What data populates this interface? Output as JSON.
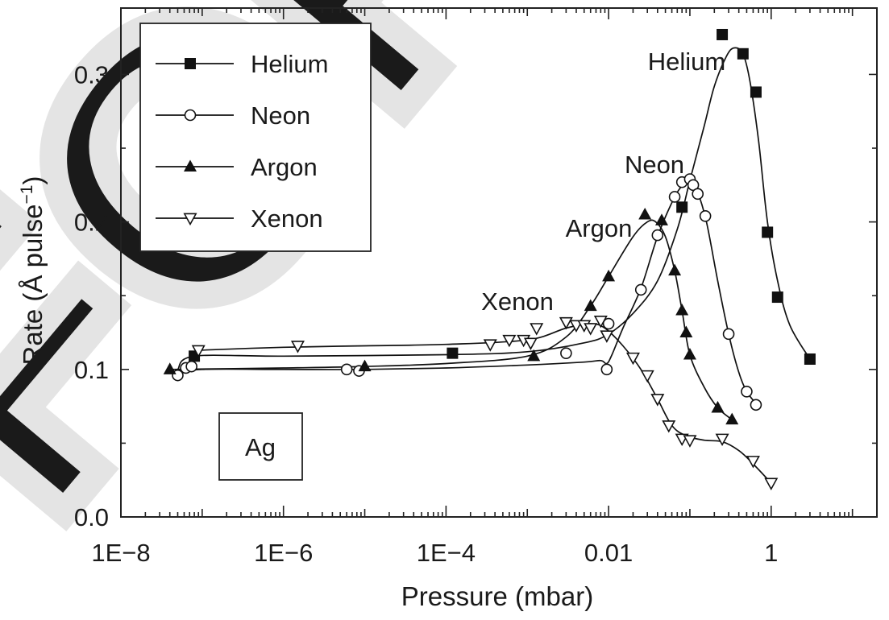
{
  "chart_data": {
    "type": "line",
    "xlabel": "Pressure (mbar)",
    "ylabel_main": "Rate (Å pulse",
    "ylabel_exp": "−1",
    "ylabel_close": ")",
    "x_scale": "log",
    "xlim": [
      1e-08,
      20
    ],
    "ylim": [
      0.0,
      0.345
    ],
    "x_ticks": [
      1e-08,
      1e-06,
      0.0001,
      0.01,
      1
    ],
    "x_tick_labels": [
      "1E−8",
      "1E−6",
      "1E−4",
      "0.01",
      "1"
    ],
    "y_ticks": [
      0.0,
      0.1,
      0.2,
      0.3
    ],
    "y_tick_labels": [
      "0.0",
      "0.1",
      "0.2",
      "0.3"
    ],
    "grid": false,
    "legend_position": "top-left",
    "sample_label": "Ag",
    "watermark": "FOR",
    "series": [
      {
        "name": "Helium",
        "marker": "filled-square",
        "line_label": "Helium",
        "points": [
          [
            8e-08,
            0.109
          ],
          [
            0.00012,
            0.111
          ],
          [
            0.08,
            0.21
          ],
          [
            0.25,
            0.327
          ],
          [
            0.45,
            0.314
          ],
          [
            0.65,
            0.288
          ],
          [
            0.9,
            0.193
          ],
          [
            1.2,
            0.149
          ],
          [
            3.0,
            0.107
          ]
        ],
        "curve": [
          [
            5e-08,
            0.1
          ],
          [
            8e-08,
            0.109
          ],
          [
            1e-06,
            0.109
          ],
          [
            0.0001,
            0.11
          ],
          [
            0.001,
            0.112
          ],
          [
            0.005,
            0.118
          ],
          [
            0.01,
            0.124
          ],
          [
            0.02,
            0.138
          ],
          [
            0.04,
            0.16
          ],
          [
            0.07,
            0.195
          ],
          [
            0.1,
            0.228
          ],
          [
            0.15,
            0.265
          ],
          [
            0.2,
            0.292
          ],
          [
            0.28,
            0.312
          ],
          [
            0.35,
            0.318
          ],
          [
            0.45,
            0.314
          ],
          [
            0.55,
            0.295
          ],
          [
            0.7,
            0.255
          ],
          [
            0.9,
            0.2
          ],
          [
            1.2,
            0.16
          ],
          [
            1.7,
            0.13
          ],
          [
            3.0,
            0.107
          ]
        ]
      },
      {
        "name": "Neon",
        "marker": "open-circle",
        "line_label": "Neon",
        "points": [
          [
            5e-08,
            0.096
          ],
          [
            6.3e-08,
            0.101
          ],
          [
            7.4e-08,
            0.102
          ],
          [
            6e-06,
            0.1
          ],
          [
            8.5e-06,
            0.099
          ],
          [
            0.003,
            0.111
          ],
          [
            0.0095,
            0.1
          ],
          [
            0.01,
            0.131
          ],
          [
            0.025,
            0.154
          ],
          [
            0.04,
            0.191
          ],
          [
            0.065,
            0.217
          ],
          [
            0.08,
            0.227
          ],
          [
            0.1,
            0.229
          ],
          [
            0.11,
            0.225
          ],
          [
            0.125,
            0.219
          ],
          [
            0.155,
            0.204
          ],
          [
            0.3,
            0.124
          ],
          [
            0.5,
            0.085
          ],
          [
            0.65,
            0.076
          ]
        ],
        "curve": [
          [
            5e-08,
            0.097
          ],
          [
            1e-07,
            0.1
          ],
          [
            1e-06,
            0.1
          ],
          [
            1e-05,
            0.1
          ],
          [
            0.0001,
            0.101
          ],
          [
            0.001,
            0.103
          ],
          [
            0.005,
            0.105
          ],
          [
            0.008,
            0.106
          ],
          [
            0.0095,
            0.104
          ],
          [
            0.011,
            0.11
          ],
          [
            0.015,
            0.128
          ],
          [
            0.025,
            0.155
          ],
          [
            0.04,
            0.19
          ],
          [
            0.065,
            0.217
          ],
          [
            0.085,
            0.226
          ],
          [
            0.1,
            0.229
          ],
          [
            0.125,
            0.22
          ],
          [
            0.16,
            0.2
          ],
          [
            0.22,
            0.16
          ],
          [
            0.3,
            0.124
          ],
          [
            0.4,
            0.098
          ],
          [
            0.5,
            0.085
          ],
          [
            0.65,
            0.077
          ]
        ]
      },
      {
        "name": "Argon",
        "marker": "filled-triangle",
        "line_label": "Argon",
        "points": [
          [
            4e-08,
            0.1
          ],
          [
            1e-05,
            0.102
          ],
          [
            0.0012,
            0.109
          ],
          [
            0.006,
            0.143
          ],
          [
            0.01,
            0.163
          ],
          [
            0.028,
            0.205
          ],
          [
            0.045,
            0.201
          ],
          [
            0.065,
            0.167
          ],
          [
            0.08,
            0.14
          ],
          [
            0.09,
            0.125
          ],
          [
            0.1,
            0.11
          ],
          [
            0.22,
            0.074
          ],
          [
            0.33,
            0.066
          ]
        ],
        "curve": [
          [
            4e-08,
            0.1
          ],
          [
            1e-06,
            0.101
          ],
          [
            1e-05,
            0.102
          ],
          [
            0.0001,
            0.104
          ],
          [
            0.001,
            0.109
          ],
          [
            0.003,
            0.122
          ],
          [
            0.006,
            0.143
          ],
          [
            0.01,
            0.163
          ],
          [
            0.02,
            0.19
          ],
          [
            0.03,
            0.2
          ],
          [
            0.038,
            0.2
          ],
          [
            0.05,
            0.19
          ],
          [
            0.065,
            0.167
          ],
          [
            0.08,
            0.14
          ],
          [
            0.1,
            0.11
          ],
          [
            0.15,
            0.088
          ],
          [
            0.22,
            0.074
          ],
          [
            0.33,
            0.066
          ]
        ]
      },
      {
        "name": "Xenon",
        "marker": "open-triangle-down",
        "line_label": "Xenon",
        "points": [
          [
            9e-08,
            0.113
          ],
          [
            1.5e-06,
            0.116
          ],
          [
            0.00035,
            0.117
          ],
          [
            0.0006,
            0.12
          ],
          [
            0.0009,
            0.12
          ],
          [
            0.0011,
            0.118
          ],
          [
            0.0013,
            0.128
          ],
          [
            0.003,
            0.132
          ],
          [
            0.004,
            0.13
          ],
          [
            0.005,
            0.13
          ],
          [
            0.006,
            0.128
          ],
          [
            0.008,
            0.133
          ],
          [
            0.0095,
            0.123
          ],
          [
            0.02,
            0.108
          ],
          [
            0.03,
            0.096
          ],
          [
            0.04,
            0.08
          ],
          [
            0.055,
            0.062
          ],
          [
            0.08,
            0.053
          ],
          [
            0.1,
            0.052
          ],
          [
            0.25,
            0.053
          ],
          [
            0.6,
            0.038
          ],
          [
            1.0,
            0.023
          ]
        ],
        "curve": [
          [
            9e-08,
            0.113
          ],
          [
            1e-06,
            0.115
          ],
          [
            1e-05,
            0.116
          ],
          [
            0.0001,
            0.117
          ],
          [
            0.001,
            0.12
          ],
          [
            0.003,
            0.128
          ],
          [
            0.006,
            0.131
          ],
          [
            0.009,
            0.128
          ],
          [
            0.015,
            0.116
          ],
          [
            0.025,
            0.1
          ],
          [
            0.04,
            0.08
          ],
          [
            0.06,
            0.062
          ],
          [
            0.09,
            0.055
          ],
          [
            0.15,
            0.052
          ],
          [
            0.25,
            0.051
          ],
          [
            0.4,
            0.045
          ],
          [
            0.6,
            0.036
          ],
          [
            1.0,
            0.023
          ]
        ]
      }
    ]
  }
}
